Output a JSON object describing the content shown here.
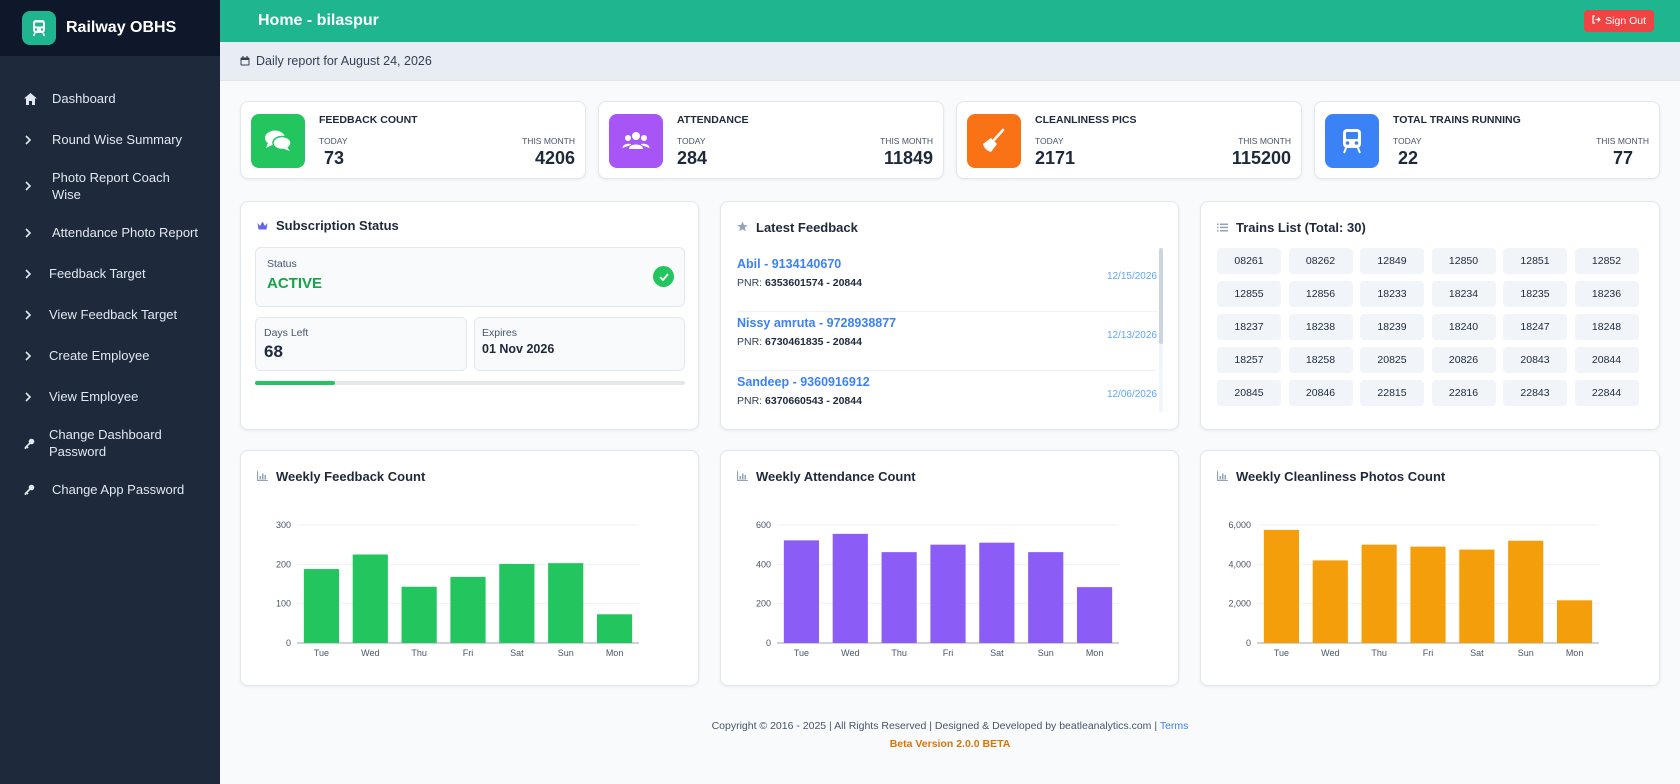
{
  "app": {
    "title": "Railway OBHS"
  },
  "sidebar": {
    "items": [
      {
        "label": "Dashboard",
        "icon": "home-icon"
      },
      {
        "label": "Round Wise Summary",
        "icon": "chevron-right-icon"
      },
      {
        "label": "Photo Report Coach Wise",
        "icon": "chevron-right-icon"
      },
      {
        "label": "Attendance Photo Report",
        "icon": "chevron-right-icon"
      },
      {
        "label": "Feedback Target",
        "icon": "chevron-right-icon"
      },
      {
        "label": "View Feedback Target",
        "icon": "chevron-right-icon"
      },
      {
        "label": "Create Employee",
        "icon": "chevron-right-icon"
      },
      {
        "label": "View Employee",
        "icon": "chevron-right-icon"
      },
      {
        "label": "Change Dashboard Password",
        "icon": "key-icon"
      },
      {
        "label": "Change App Password",
        "icon": "key-icon"
      }
    ]
  },
  "header": {
    "title": "Home - bilaspur",
    "signout_label": "Sign Out"
  },
  "subheader": {
    "text": "Daily report for August 24, 2026"
  },
  "stats": [
    {
      "title": "FEEDBACK COUNT",
      "today_label": "TODAY",
      "month_label": "THIS MONTH",
      "today": "73",
      "month": "4206",
      "color": "#22c55e",
      "icon": "comments-icon"
    },
    {
      "title": "ATTENDANCE",
      "today_label": "TODAY",
      "month_label": "THIS MONTH",
      "today": "284",
      "month": "11849",
      "color": "#a855f7",
      "icon": "users-icon"
    },
    {
      "title": "CLEANLINESS PICS",
      "today_label": "TODAY",
      "month_label": "THIS MONTH",
      "today": "2171",
      "month": "115200",
      "color": "#f97316",
      "icon": "broom-icon"
    },
    {
      "title": "TOTAL TRAINS RUNNING",
      "today_label": "TODAY",
      "month_label": "THIS MONTH",
      "today": "22",
      "month": "77",
      "color": "#3b82f6",
      "icon": "train-icon"
    }
  ],
  "subscription": {
    "title": "Subscription Status",
    "status_label": "Status",
    "status": "ACTIVE",
    "days_left_label": "Days Left",
    "days_left": "68",
    "expires_label": "Expires",
    "expires": "01 Nov 2026",
    "progress": 0.185
  },
  "feedback": {
    "title": "Latest Feedback",
    "items": [
      {
        "name": "Abil - 9134140670",
        "pnr_label": "PNR:",
        "pnr": "6353601574 - 20844",
        "date": "12/15/2026"
      },
      {
        "name": "Nissy amruta - 9728938877",
        "pnr_label": "PNR:",
        "pnr": "6730461835 - 20844",
        "date": "12/13/2026"
      },
      {
        "name": "Sandeep - 9360916912",
        "pnr_label": "PNR:",
        "pnr": "6370660543 - 20844",
        "date": "12/06/2026"
      }
    ]
  },
  "trains": {
    "title": "Trains List (Total: 30)",
    "list": [
      "08261",
      "08262",
      "12849",
      "12850",
      "12851",
      "12852",
      "12855",
      "12856",
      "18233",
      "18234",
      "18235",
      "18236",
      "18237",
      "18238",
      "18239",
      "18240",
      "18247",
      "18248",
      "18257",
      "18258",
      "20825",
      "20826",
      "20843",
      "20844",
      "20845",
      "20846",
      "22815",
      "22816",
      "22843",
      "22844"
    ]
  },
  "chart_data": [
    {
      "type": "bar",
      "title": "Weekly Feedback Count",
      "categories": [
        "Tue",
        "Wed",
        "Thu",
        "Fri",
        "Sat",
        "Sun",
        "Mon"
      ],
      "values": [
        188,
        225,
        143,
        168,
        201,
        203,
        73
      ],
      "ylim": [
        0,
        300
      ],
      "yticks": [
        "0",
        "100",
        "200",
        "300"
      ],
      "ytick_values": [
        0,
        100,
        200,
        300
      ],
      "color": "#22c55e",
      "grid": true
    },
    {
      "type": "bar",
      "title": "Weekly Attendance Count",
      "categories": [
        "Tue",
        "Wed",
        "Thu",
        "Fri",
        "Sat",
        "Sun",
        "Mon"
      ],
      "values": [
        522,
        555,
        462,
        500,
        510,
        462,
        284
      ],
      "ylim": [
        0,
        600
      ],
      "yticks": [
        "0",
        "200",
        "400",
        "600"
      ],
      "ytick_values": [
        0,
        200,
        400,
        600
      ],
      "color": "#8b5cf6",
      "grid": true
    },
    {
      "type": "bar",
      "title": "Weekly Cleanliness Photos Count",
      "categories": [
        "Tue",
        "Wed",
        "Thu",
        "Fri",
        "Sat",
        "Sun",
        "Mon"
      ],
      "values": [
        5750,
        4200,
        5000,
        4900,
        4750,
        5200,
        2171
      ],
      "ylim": [
        0,
        6000
      ],
      "yticks": [
        "0",
        "2,000",
        "4,000",
        "6,000"
      ],
      "ytick_values": [
        0,
        2000,
        4000,
        6000
      ],
      "color": "#f59e0b",
      "grid": true
    }
  ],
  "footer": {
    "copyright": "Copyright © 2016 - 2025 | All Rights Reserved | Designed & Developed by beatleanalytics.com |",
    "terms_label": "Terms",
    "version": "Beta Version 2.0.0 BETA"
  }
}
